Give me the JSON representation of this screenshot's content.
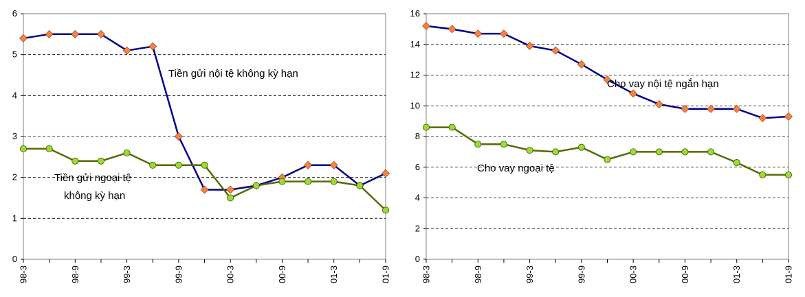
{
  "chart_data": [
    {
      "type": "line",
      "title": "",
      "xlabel": "",
      "ylabel": "",
      "x": [
        "98-3",
        "98-6",
        "98-9",
        "98-12",
        "99-3",
        "99-6",
        "99-9",
        "99-12",
        "00-3",
        "00-6",
        "00-9",
        "00-12",
        "01-3",
        "01-6",
        "01-9"
      ],
      "x_tick_labels": [
        "98-3",
        "98-9",
        "99-3",
        "99-9",
        "00-3",
        "00-9",
        "01-3",
        "01-9"
      ],
      "ylim": [
        0,
        6
      ],
      "yticks": [
        0,
        1,
        2,
        3,
        4,
        5,
        6
      ],
      "grid": "horizontal dashed",
      "series": [
        {
          "annotation": "Tiền gửi nội tệ không kỳ hạn",
          "color": "#00008b",
          "marker_color": "#ff7f3f",
          "marker": "diamond",
          "values": [
            5.4,
            5.5,
            5.5,
            5.5,
            5.1,
            5.2,
            3.0,
            1.7,
            1.7,
            1.8,
            2.0,
            2.3,
            2.3,
            1.8,
            2.1
          ]
        },
        {
          "annotation_lines": [
            "Tiền gửi ngoại tệ",
            "không kỳ hạn"
          ],
          "color": "#556b00",
          "marker_color": "#99dd33",
          "marker": "circle",
          "values": [
            2.7,
            2.7,
            2.4,
            2.4,
            2.6,
            2.3,
            2.3,
            2.3,
            1.5,
            1.8,
            1.9,
            1.9,
            1.9,
            1.8,
            1.2
          ]
        }
      ]
    },
    {
      "type": "line",
      "title": "",
      "xlabel": "",
      "ylabel": "",
      "x": [
        "98-3",
        "98-6",
        "98-9",
        "98-12",
        "99-3",
        "99-6",
        "99-9",
        "99-12",
        "00-3",
        "00-6",
        "00-9",
        "00-12",
        "01-3",
        "01-6",
        "01-9"
      ],
      "x_tick_labels": [
        "98-3",
        "98-9",
        "99-3",
        "99-9",
        "00-3",
        "00-9",
        "01-3",
        "01-9"
      ],
      "ylim": [
        0,
        16
      ],
      "yticks": [
        0,
        2,
        4,
        6,
        8,
        10,
        12,
        14,
        16
      ],
      "grid": "horizontal dashed",
      "series": [
        {
          "annotation": "Cho vay nội tệ ngắn hạn",
          "color": "#00008b",
          "marker_color": "#ff7f3f",
          "marker": "diamond",
          "values": [
            15.2,
            15.0,
            14.7,
            14.7,
            13.9,
            13.6,
            12.7,
            11.7,
            10.8,
            10.1,
            9.8,
            9.8,
            9.8,
            9.2,
            9.3
          ]
        },
        {
          "annotation": "Cho vay ngoại tệ",
          "color": "#556b00",
          "marker_color": "#99dd33",
          "marker": "circle",
          "values": [
            8.6,
            8.6,
            7.5,
            7.5,
            7.1,
            7.0,
            7.3,
            6.5,
            7.0,
            7.0,
            7.0,
            7.0,
            6.3,
            5.5,
            5.5
          ]
        }
      ]
    }
  ]
}
